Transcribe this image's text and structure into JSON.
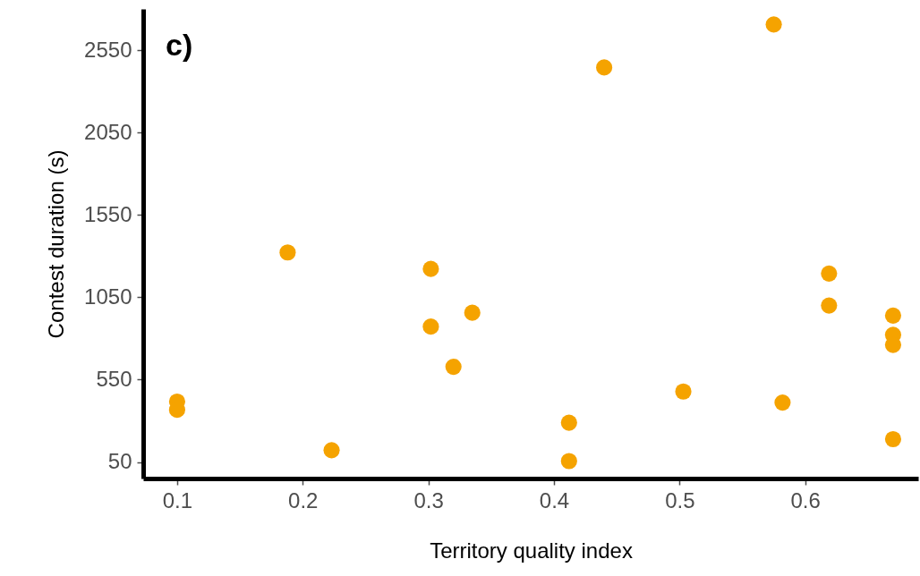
{
  "chart_data": {
    "type": "scatter",
    "xlabel": "Territory quality index",
    "ylabel": "Contest duration (s)",
    "annotations": [
      "c)"
    ],
    "x": [
      0.1,
      0.1,
      0.188,
      0.223,
      0.302,
      0.302,
      0.32,
      0.335,
      0.412,
      0.412,
      0.44,
      0.503,
      0.575,
      0.582,
      0.619,
      0.619,
      0.67,
      0.67,
      0.67,
      0.67
    ],
    "series": [
      {
        "color": "#f5a300",
        "values": [
          417,
          367,
          1322,
          122,
          1222,
          872,
          628,
          956,
          289,
          56,
          2445,
          478,
          2706,
          411,
          1194,
          1000,
          939,
          822,
          761,
          189
        ]
      }
    ],
    "xlim": [
      0.073,
      0.69
    ],
    "xticks": [
      0.1,
      0.2,
      0.3,
      0.4,
      0.5,
      0.6
    ],
    "ylim": [
      -50,
      2800
    ],
    "yticks": [
      50,
      550,
      1050,
      1550,
      2050,
      2550
    ],
    "grid": false,
    "marker": "circle"
  }
}
